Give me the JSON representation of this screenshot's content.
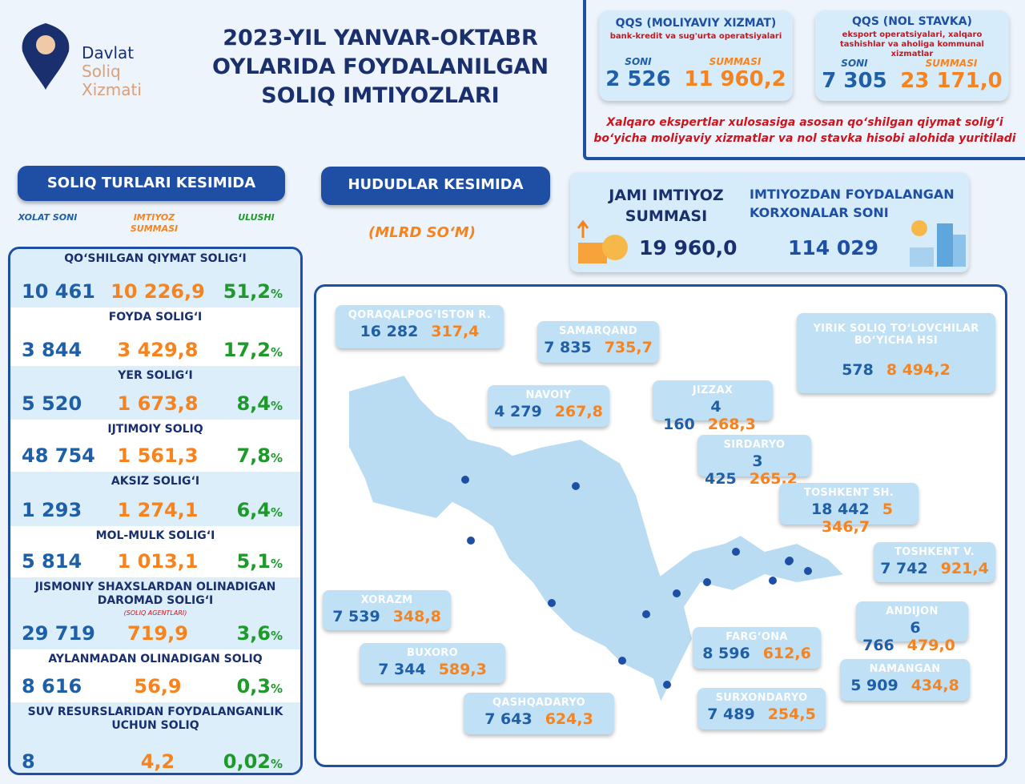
{
  "logo": {
    "line1": "Davlat",
    "line2": "Soliq",
    "line3": "Xizmati"
  },
  "title": [
    "2023-YIL YANVAR-OKTABR",
    "OYLARIDA FOYDALANILGAN",
    "SOLIQ IMTIYOZLARI"
  ],
  "qqs_cards": [
    {
      "title": "QQS (MOLIYAVIY XIZMAT)",
      "subtitle": "bank-kredit va sug'urta operatsiyalari",
      "soni_label": "SONI",
      "summa_label": "SUMMASI",
      "soni": "2 526",
      "summa": "11 960,2"
    },
    {
      "title": "QQS (NOL STAVKA)",
      "subtitle": "eksport operatsiyalari, xalqaro tashishlar va aholiga kommunal xizmatlar",
      "soni_label": "SONI",
      "summa_label": "SUMMASI",
      "soni": "7 305",
      "summa": "23 171,0"
    }
  ],
  "note": "Xalqaro ekspertlar xulosasiga asosan qo‘shilgan qiymat solig‘i bo‘yicha moliyaviy xizmatlar va nol stavka hisobi alohida yuritiladi",
  "left_title": "SOLIQ TURLARI KESIMIDA",
  "columns": {
    "count": "XOLAT SONI",
    "sum": "IMTIYOZ SUMMASI",
    "share": "ULUSHI"
  },
  "taxes": [
    {
      "name": "QO‘SHILGAN QIYMAT SOLIG‘I",
      "count": "10 461",
      "sum": "10 226,9",
      "share": "51,2"
    },
    {
      "name": "FOYDA SOLIG‘I",
      "count": "3 844",
      "sum": "3 429,8",
      "share": "17,2"
    },
    {
      "name": "YER SOLIG‘I",
      "count": "5 520",
      "sum": "1 673,8",
      "share": "8,4"
    },
    {
      "name": "IJTIMOIY SOLIQ",
      "count": "48 754",
      "sum": "1 561,3",
      "share": "7,8"
    },
    {
      "name": "AKSIZ SOLIG‘I",
      "count": "1 293",
      "sum": "1 274,1",
      "share": "6,4"
    },
    {
      "name": "MOL-MULK SOLIG‘I",
      "count": "5 814",
      "sum": "1 013,1",
      "share": "5,1"
    },
    {
      "name": "JISMONIY SHAXSLARDAN OLINADIGAN DAROMAD SOLIG‘I",
      "note": "(SOLIQ AGENTLARI)",
      "count": "29 719",
      "sum": "719,9",
      "share": "3,6"
    },
    {
      "name": "AYLANMADAN OLINADIGAN SOLIQ",
      "count": "8 616",
      "sum": "56,9",
      "share": "0,3"
    },
    {
      "name": "SUV RESURSLARIDAN FOYDALANGANLIK UCHUN SOLIQ",
      "count": "8",
      "sum": "4,2",
      "share": "0,02"
    }
  ],
  "pct": "%",
  "region_title": "HUDUDLAR KESIMIDA",
  "unit": "(MLRD SO‘M)",
  "jami": {
    "label": "JAMI IMTIYOZ SUMMASI",
    "value": "19 960,0",
    "count_label": "IMTIYOZDAN FOYDALANGAN KORXONALAR SONI",
    "count": "114 029"
  },
  "regions": [
    {
      "name": "QORAQALPOG‘ISTON R.",
      "count": "16 282",
      "sum": "317,4"
    },
    {
      "name": "SAMARQAND",
      "count": "7 835",
      "sum": "735,7"
    },
    {
      "name": "YIRIK SOLIQ TO‘LOVCHILAR BO‘YICHA HSI",
      "count": "578",
      "sum": "8 494,2"
    },
    {
      "name": "NAVOIY",
      "count": "4 279",
      "sum": "267,8"
    },
    {
      "name": "JIZZAX",
      "count": "4 160",
      "sum": "268,3"
    },
    {
      "name": "SIRDARYO",
      "count": "3 425",
      "sum": "265,2"
    },
    {
      "name": "TOSHKENT SH.",
      "count": "18 442",
      "sum": "5 346,7"
    },
    {
      "name": "TOSHKENT V.",
      "count": "7 742",
      "sum": "921,4"
    },
    {
      "name": "XORAZM",
      "count": "7 539",
      "sum": "348,8"
    },
    {
      "name": "ANDIJON",
      "count": "6 766",
      "sum": "479,0"
    },
    {
      "name": "FARG‘ONA",
      "count": "8 596",
      "sum": "612,6"
    },
    {
      "name": "BUXORO",
      "count": "7 344",
      "sum": "589,3"
    },
    {
      "name": "NAMANGAN",
      "count": "5 909",
      "sum": "434,8"
    },
    {
      "name": "QASHQADARYO",
      "count": "7 643",
      "sum": "624,3"
    },
    {
      "name": "SURXONDARYO",
      "count": "7 489",
      "sum": "254,5"
    }
  ]
}
